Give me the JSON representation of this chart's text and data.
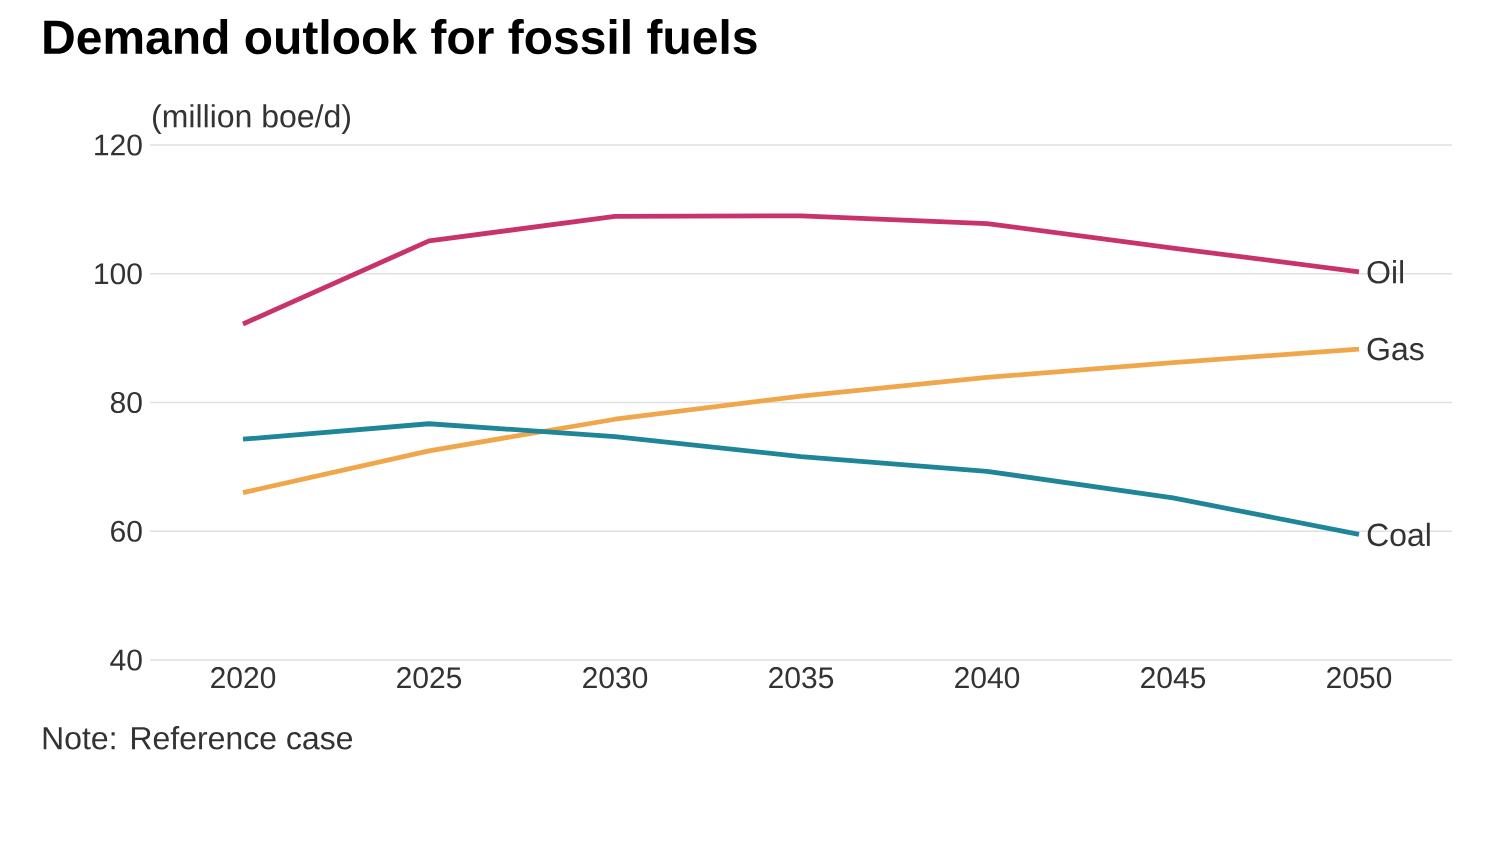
{
  "chart_data": {
    "type": "line",
    "title": "Demand outlook for fossil fuels",
    "ylabel": "(million boe/d)",
    "x": [
      2020,
      2025,
      2030,
      2035,
      2040,
      2045,
      2050
    ],
    "series": [
      {
        "name": "Oil",
        "color": "#c8336b",
        "values": [
          92.2,
          105.1,
          108.9,
          109.0,
          107.8,
          104.0,
          100.3
        ]
      },
      {
        "name": "Gas",
        "color": "#f0a64a",
        "values": [
          66.0,
          72.5,
          77.4,
          81.0,
          83.9,
          86.2,
          88.3
        ]
      },
      {
        "name": "Coal",
        "color": "#1f8599",
        "values": [
          74.3,
          76.7,
          74.7,
          71.6,
          69.3,
          65.2,
          59.5
        ]
      }
    ],
    "xlim": [
      2017.5,
      2052.5
    ],
    "ylim": [
      40,
      120
    ],
    "xticks": [
      2020,
      2025,
      2030,
      2035,
      2040,
      2045,
      2050
    ],
    "yticks": [
      40,
      60,
      80,
      100,
      120
    ],
    "grid": "y",
    "legend": false,
    "marker": "none",
    "line_style": "solid",
    "annotations": [
      "Note: Reference case"
    ]
  }
}
